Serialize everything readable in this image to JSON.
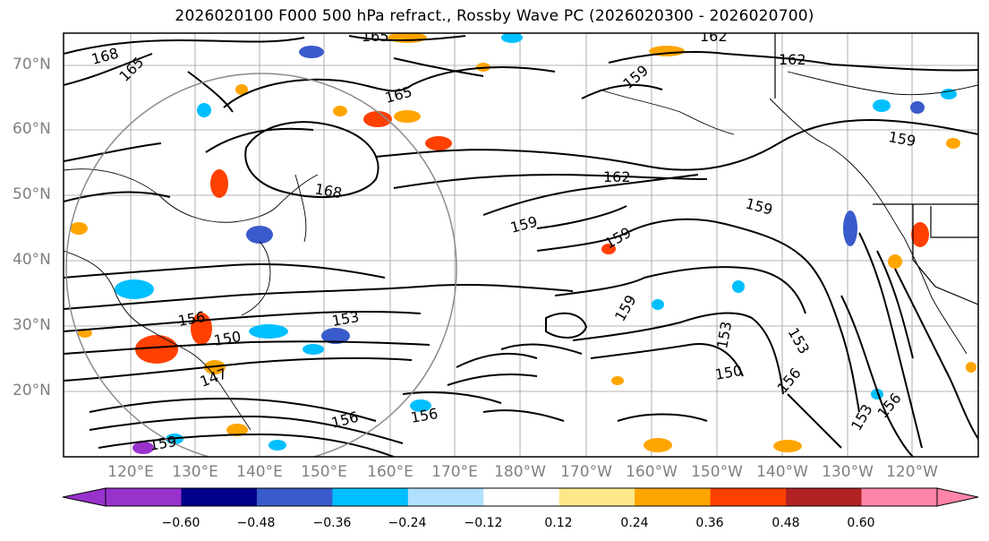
{
  "title": "2026020100 F000 500 hPa refract., Rossby Wave PC (2026020300 - 2026020700)",
  "lat_labels": [
    "70°N",
    "60°N",
    "50°N",
    "40°N",
    "30°N",
    "20°N"
  ],
  "lon_labels": [
    "120°E",
    "130°E",
    "140°E",
    "150°E",
    "160°E",
    "170°E",
    "180°W",
    "170°W",
    "160°W",
    "150°W",
    "140°W",
    "130°W",
    "120°W"
  ],
  "contour_labels": [
    "168",
    "165",
    "165",
    "162",
    "162",
    "159",
    "159",
    "159",
    "168",
    "162",
    "165",
    "159",
    "159",
    "156",
    "150",
    "153",
    "147",
    "153",
    "150",
    "156",
    "153",
    "159",
    "153",
    "156",
    "156",
    "156",
    "159"
  ],
  "colorbar": {
    "ticks": [
      "−0.60",
      "−0.48",
      "−0.36",
      "−0.24",
      "−0.12",
      "0.12",
      "0.24",
      "0.36",
      "0.48",
      "0.60"
    ],
    "colors": [
      "#9932CC",
      "#00008B",
      "#3A5BCB",
      "#00BFFF",
      "#B0E0FF",
      "#FFFFFF",
      "#FFE88A",
      "#FFA500",
      "#FF4000",
      "#B22222",
      "#FF85A8"
    ]
  }
}
